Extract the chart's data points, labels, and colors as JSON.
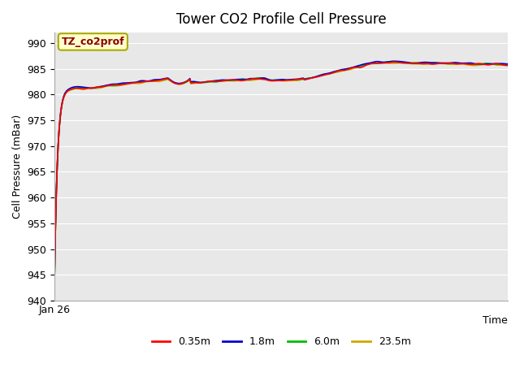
{
  "title": "Tower CO2 Profile Cell Pressure",
  "xlabel": "Time",
  "ylabel": "Cell Pressure (mBar)",
  "ylim": [
    940,
    992
  ],
  "yticks": [
    940,
    945,
    950,
    955,
    960,
    965,
    970,
    975,
    980,
    985,
    990
  ],
  "xticklabel": "Jan 26",
  "annotation_label": "TZ_co2prof",
  "annotation_color": "#8B0000",
  "annotation_bg": "#FFFFCC",
  "annotation_edge": "#AAAA00",
  "bg_color": "#E8E8E8",
  "series_colors": [
    "#FF0000",
    "#0000CC",
    "#00BB00",
    "#CCAA00"
  ],
  "series_labels": [
    "0.35m",
    "1.8m",
    "6.0m",
    "23.5m"
  ],
  "title_fontsize": 12,
  "axis_label_fontsize": 9,
  "tick_fontsize": 9,
  "legend_fontsize": 9,
  "figwidth": 6.4,
  "figheight": 4.8,
  "dpi": 100
}
